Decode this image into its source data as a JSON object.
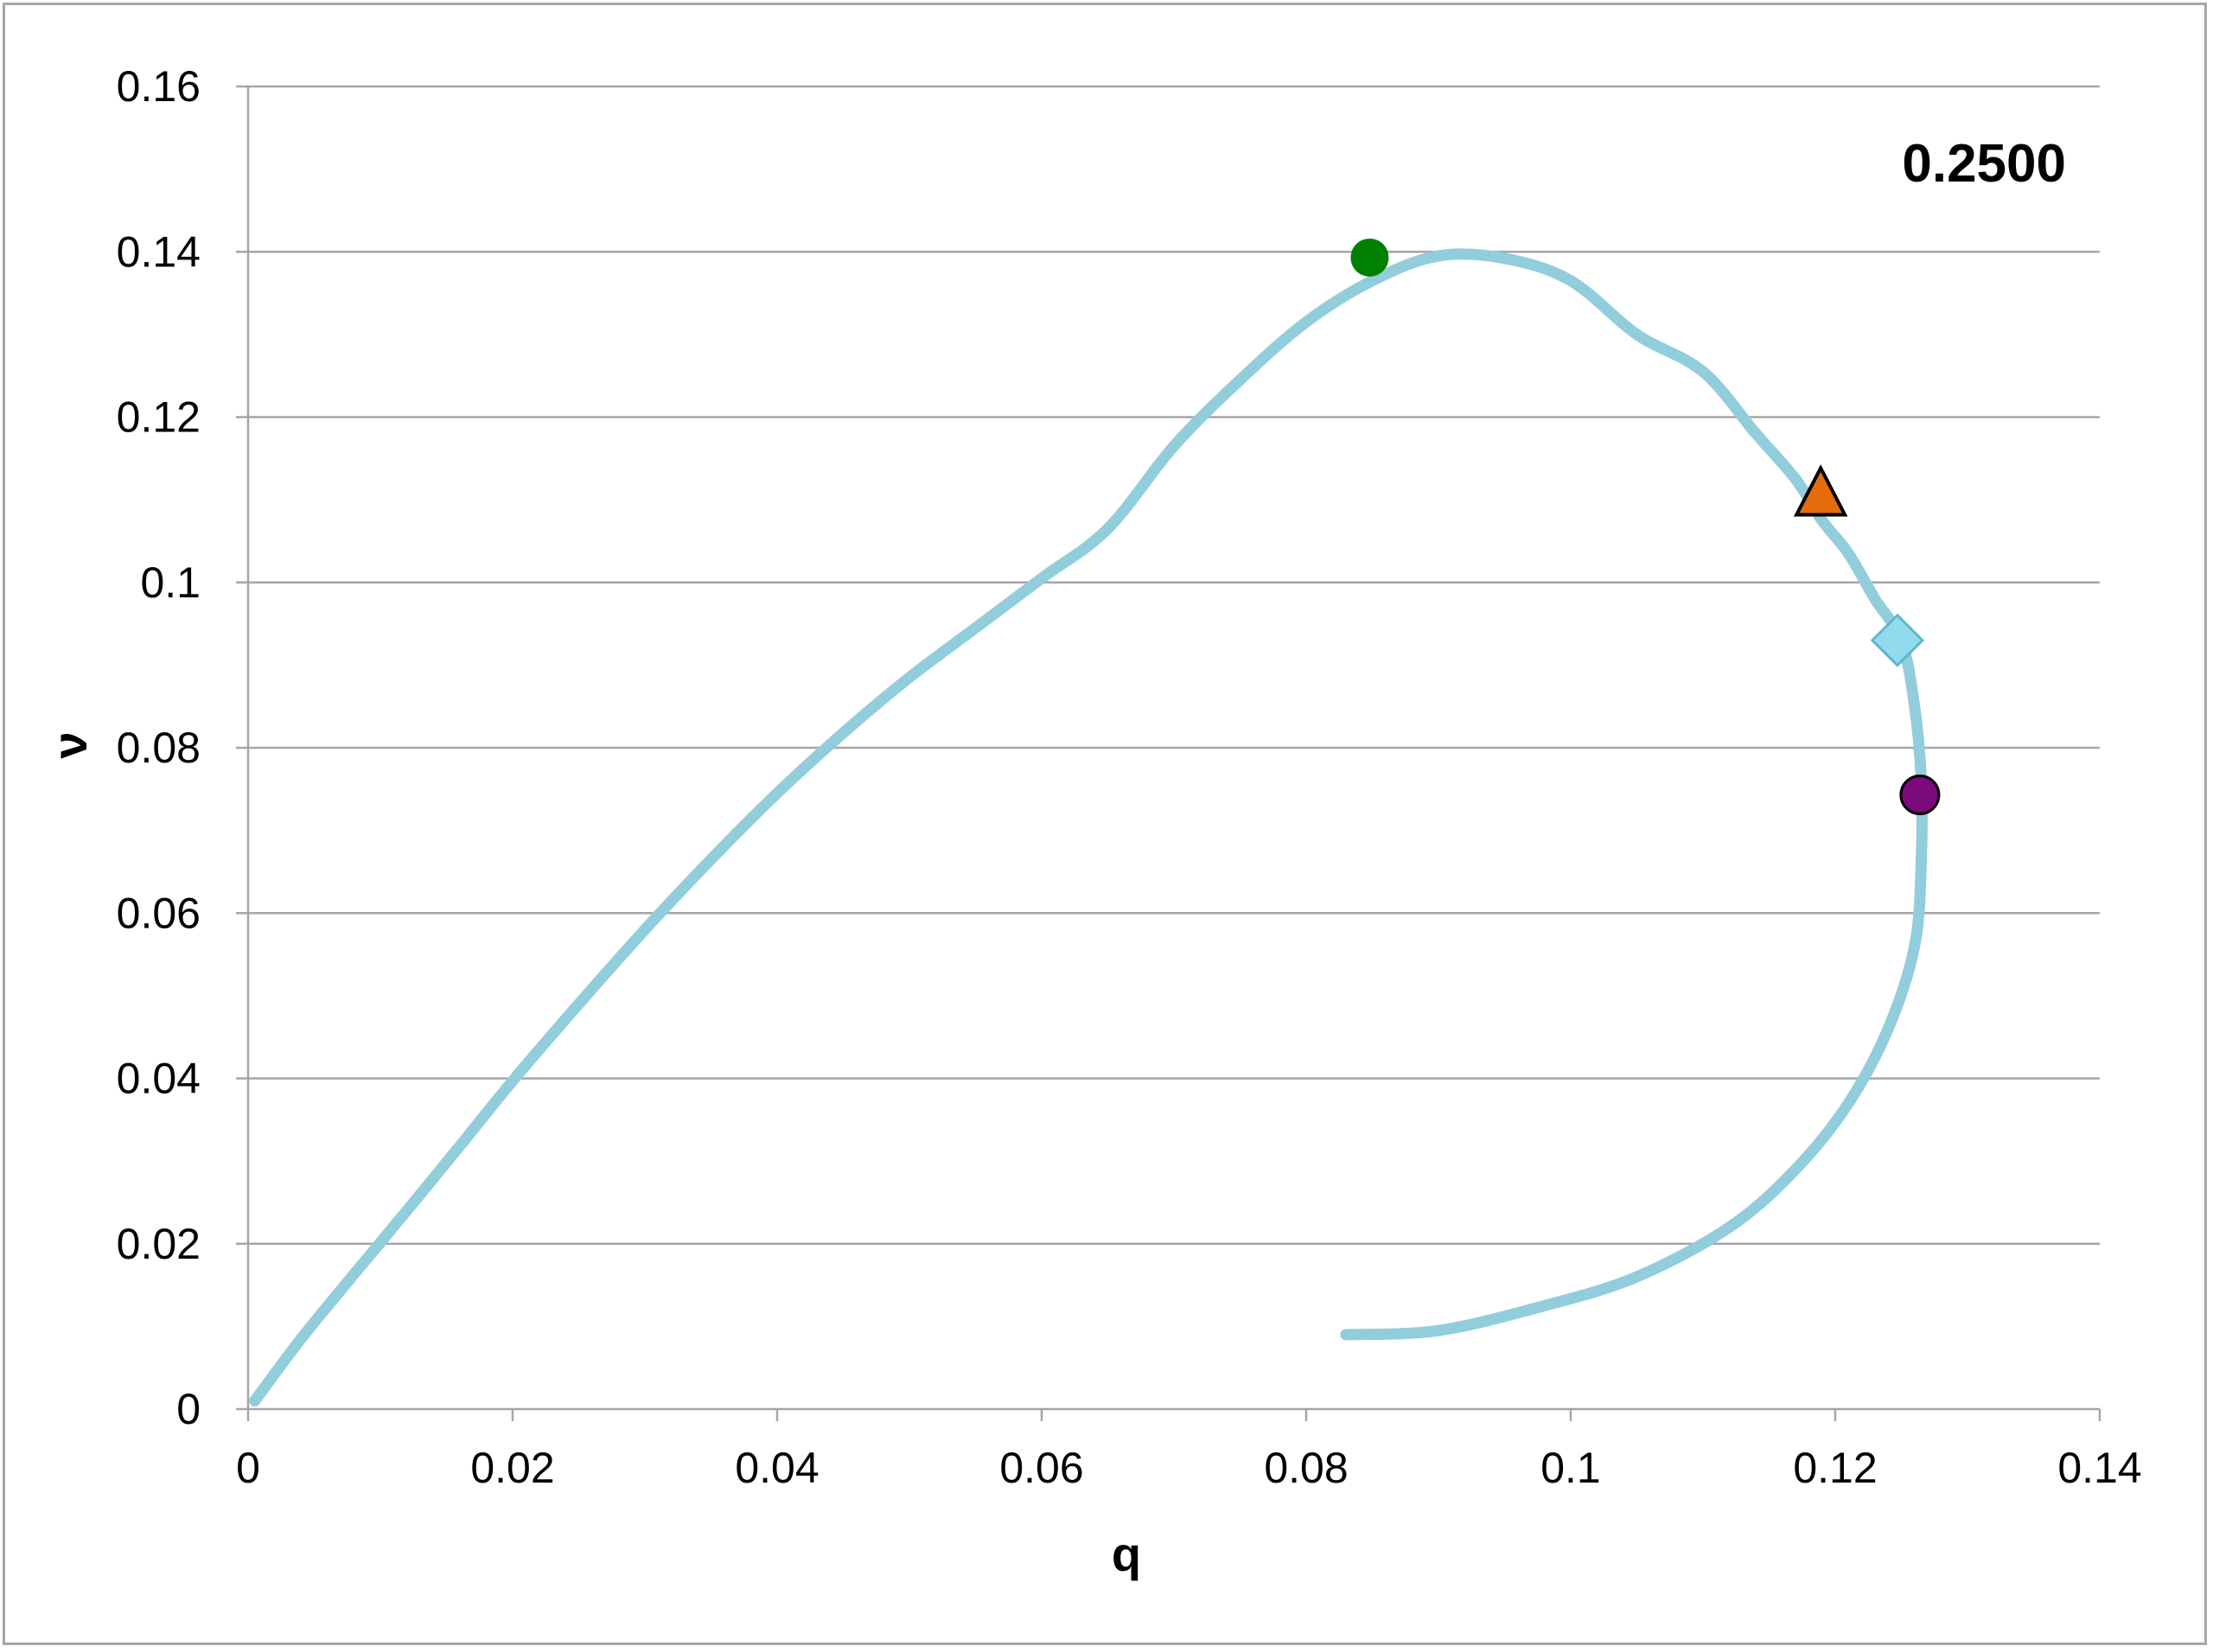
{
  "chart_data": {
    "type": "scatter",
    "xlabel": "q",
    "ylabel": "ν",
    "annotation": "0.2500",
    "xlim": [
      0,
      0.14
    ],
    "ylim": [
      0,
      0.16
    ],
    "x_ticks": [
      "0",
      "0.02",
      "0.04",
      "0.06",
      "0.08",
      "0.1",
      "0.12",
      "0.14"
    ],
    "y_ticks": [
      "0",
      "0.02",
      "0.04",
      "0.06",
      "0.08",
      "0.1",
      "0.12",
      "0.14",
      "0.16"
    ],
    "grid": "horizontal",
    "legend": "none",
    "colors": {
      "curve": "#92cddc",
      "grid": "#a6a6a6",
      "axis": "#a6a6a6",
      "marker_green": "#008000",
      "marker_orange": "#e46c0a",
      "marker_diamond": "#92dbef",
      "marker_purple": "#7b0a7b"
    },
    "series": [
      {
        "kind": "curve",
        "x": [
          0.0005,
          0.004,
          0.008,
          0.012,
          0.016,
          0.02,
          0.025,
          0.03,
          0.035,
          0.04,
          0.045,
          0.05,
          0.055,
          0.06,
          0.065,
          0.07,
          0.075,
          0.08,
          0.085,
          0.09,
          0.095,
          0.1,
          0.105,
          0.11,
          0.114,
          0.117,
          0.119,
          0.121,
          0.123,
          0.125,
          0.126,
          0.1265,
          0.1265,
          0.126,
          0.124,
          0.121,
          0.117,
          0.112,
          0.105,
          0.098,
          0.09,
          0.083
        ],
        "y": [
          0.001,
          0.0085,
          0.0163,
          0.024,
          0.0318,
          0.0397,
          0.049,
          0.058,
          0.0665,
          0.0745,
          0.0818,
          0.0885,
          0.0945,
          0.1005,
          0.1065,
          0.1165,
          0.1245,
          0.1315,
          0.1365,
          0.1395,
          0.1392,
          0.1365,
          0.13,
          0.1255,
          0.118,
          0.1125,
          0.1075,
          0.1035,
          0.098,
          0.093,
          0.085,
          0.076,
          0.066,
          0.056,
          0.046,
          0.037,
          0.029,
          0.022,
          0.016,
          0.0125,
          0.0095,
          0.009
        ]
      },
      {
        "kind": "point",
        "marker": "circle",
        "color": "marker_green",
        "x": 0.0848,
        "y": 0.1393
      },
      {
        "kind": "point",
        "marker": "triangle",
        "color": "marker_orange",
        "x": 0.1189,
        "y": 0.1108
      },
      {
        "kind": "point",
        "marker": "diamond",
        "color": "marker_diamond",
        "x": 0.1247,
        "y": 0.093
      },
      {
        "kind": "point",
        "marker": "circle",
        "color": "marker_purple",
        "x": 0.1264,
        "y": 0.0743
      }
    ]
  }
}
